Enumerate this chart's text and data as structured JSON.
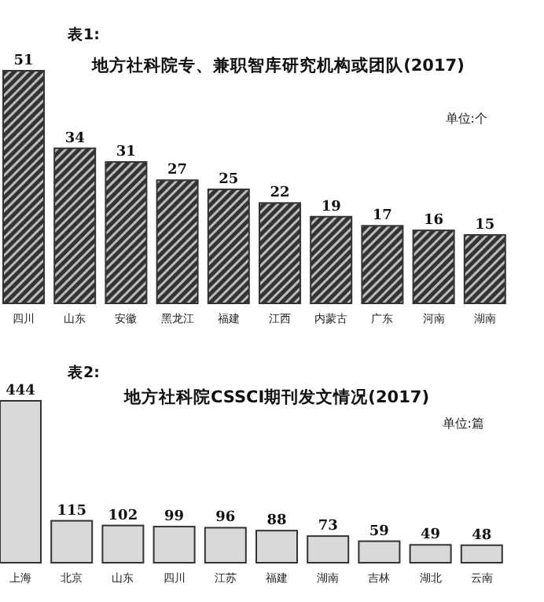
{
  "chart_data": [
    {
      "type": "bar",
      "title": "地方社科院专、兼职智库研究机构或团队(2017)",
      "annotations": [
        "表1:",
        "单位:个"
      ],
      "categories": [
        "四川",
        "山东",
        "安徽",
        "黑龙江",
        "福建",
        "江西",
        "内蒙古",
        "广东",
        "河南",
        "湖南"
      ],
      "values": [
        51,
        34,
        31,
        27,
        25,
        22,
        19,
        17,
        16,
        15
      ],
      "color": "#333333",
      "data_labels": true
    },
    {
      "type": "bar",
      "title": "地方社科院CSSCI期刊发文情况(2017)",
      "annotations": [
        "表2:",
        "单位:篇"
      ],
      "categories": [
        "上海",
        "北京",
        "山东",
        "四川",
        "江苏",
        "福建",
        "湖南",
        "吉林",
        "湖北",
        "云南"
      ],
      "values": [
        444,
        115,
        102,
        99,
        96,
        88,
        73,
        59,
        49,
        48
      ],
      "color": "#d9d9d9",
      "data_labels": true
    }
  ]
}
